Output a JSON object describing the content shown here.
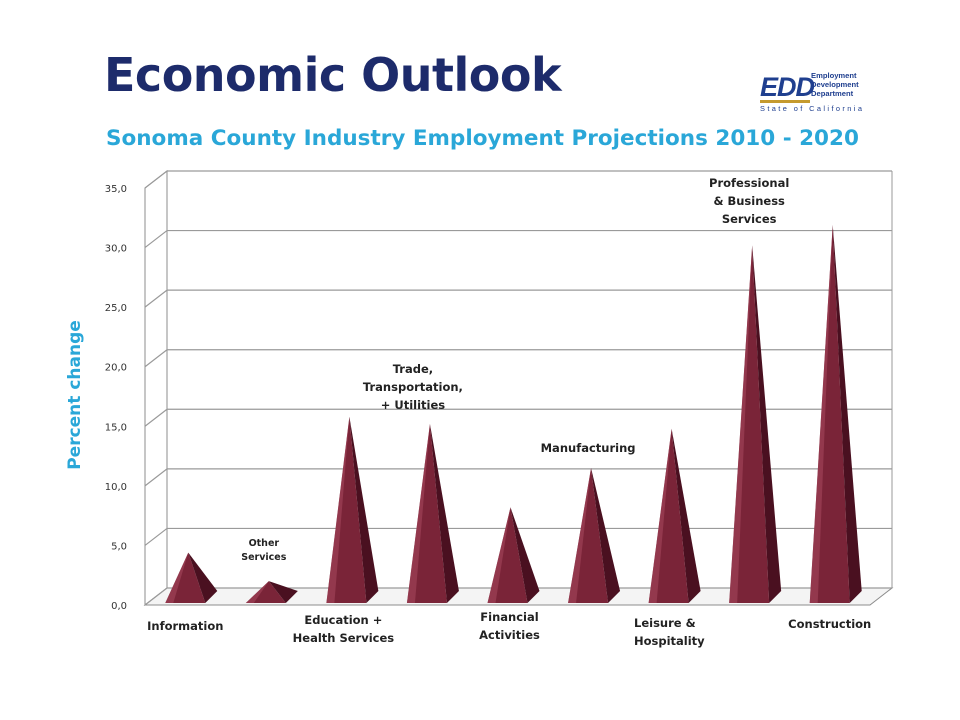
{
  "header": {
    "title": "Economic Outlook",
    "subtitle": "Sonoma County Industry Employment Projections 2010 - 2020"
  },
  "logo": {
    "mark": "EDD",
    "words": [
      "Employment",
      "Development",
      "Department"
    ],
    "state": "State of California"
  },
  "colors": {
    "title": "#1d2b6b",
    "accent": "#2aa7d8",
    "bar_face": "#7a2438",
    "bar_dark": "#4a1020",
    "bar_light": "#a8485e"
  },
  "chart_data": {
    "type": "bar",
    "bar_shape": "pyramid-3d",
    "title": "Sonoma County Industry Employment Projections 2010 - 2020",
    "ylabel": "Percent change",
    "xlabel": "",
    "ylim": [
      0,
      35
    ],
    "yticks": [
      "0,0",
      "5,0",
      "10,0",
      "15,0",
      "20,0",
      "25,0",
      "30,0",
      "35,0"
    ],
    "grid": true,
    "legend": "none",
    "categories": [
      "Information",
      "Other Services",
      "Education + Health Services",
      "Trade, Transportation, + Utilities",
      "Financial Activities",
      "Manufacturing",
      "Leisure & Hospitality",
      "Professional & Business Services",
      "Construction"
    ],
    "values": [
      4.4,
      2.0,
      15.8,
      15.2,
      8.2,
      11.5,
      14.8,
      30.2,
      31.9
    ]
  },
  "labels": [
    {
      "lines": [
        "Information"
      ]
    },
    {
      "lines": [
        "Other",
        "Services"
      ]
    },
    {
      "lines": [
        "Education +",
        "Health Services"
      ]
    },
    {
      "lines": [
        "Trade,",
        "Transportation,",
        "+ Utilities"
      ]
    },
    {
      "lines": [
        "Financial",
        "Activities"
      ]
    },
    {
      "lines": [
        "Manufacturing"
      ]
    },
    {
      "lines": [
        "Leisure &",
        "Hospitality"
      ]
    },
    {
      "lines": [
        "Professional",
        "& Business",
        "Services"
      ]
    },
    {
      "lines": [
        "Construction"
      ]
    }
  ]
}
